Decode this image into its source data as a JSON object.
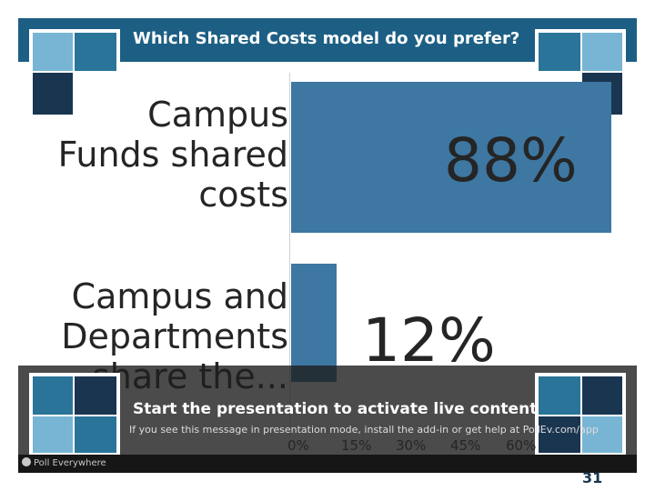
{
  "poll": {
    "question": "Which Shared Costs model do you prefer?"
  },
  "chart_data": {
    "type": "bar",
    "orientation": "horizontal",
    "categories": [
      "Campus\nFunds shared\ncosts",
      "Campus and\nDepartments\nshare the..."
    ],
    "values": [
      88,
      12
    ],
    "value_labels": [
      "88%",
      "12%"
    ],
    "xlim": [
      0,
      0.6
    ],
    "x_ticks": [
      "0%",
      "15%",
      "30%",
      "45%",
      "60%"
    ],
    "grid": false,
    "colors": {
      "bar": "#3d77a2",
      "text": "#252525"
    }
  },
  "overlay": {
    "title": "Start the presentation to activate live content",
    "subtitle": "If you see this message in presentation mode, install the add-in or get help at PollEv.com/app"
  },
  "footer": {
    "brand": "Poll Everywhere",
    "corner_mark": "31"
  },
  "colors": {
    "header": "#1d5f84",
    "square_light": "#78b5d4",
    "square_mid": "#2a7499",
    "square_dark": "#1a3550"
  }
}
